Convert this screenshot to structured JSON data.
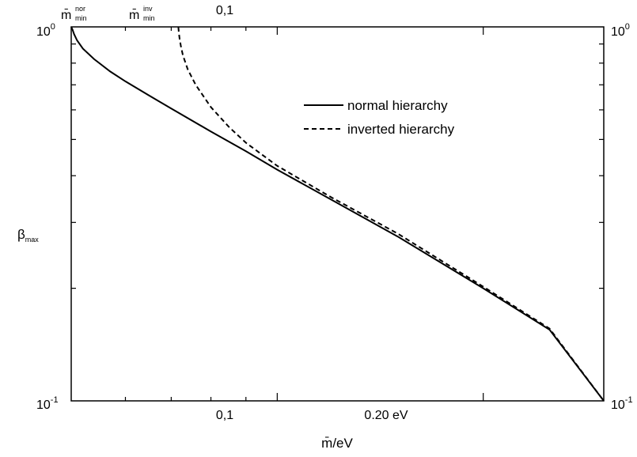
{
  "chart_data": {
    "type": "line",
    "xlabel": "m̄/eV",
    "ylabel": "β",
    "ylabel_sub": "max",
    "x_scale": "log",
    "y_scale": "log",
    "xlim": [
      0.05,
      0.3
    ],
    "ylim": [
      0.1,
      1.0
    ],
    "grid": false,
    "legend_position": "top-right",
    "x_tick_labels_bottom": [
      {
        "x": 0.1,
        "label": "0,1"
      },
      {
        "x": 0.2,
        "label": "0.20 eV"
      }
    ],
    "top_labels": {
      "nor": {
        "x": 0.05,
        "base": "m̄",
        "sup": "nor",
        "sub": "min"
      },
      "inv": {
        "x": 0.0717,
        "base": "m̄",
        "sup": "inv",
        "sub": "min"
      },
      "tick": {
        "x": 0.1,
        "label": "0,1"
      }
    },
    "y_tick_labels": [
      {
        "y": 1.0,
        "base": "10",
        "exp": "0"
      },
      {
        "y": 0.1,
        "base": "10",
        "exp": "-1"
      }
    ],
    "series": [
      {
        "name": "normal hierarchy",
        "style": "solid",
        "x": [
          0.05,
          0.0502,
          0.0505,
          0.051,
          0.052,
          0.054,
          0.057,
          0.06,
          0.065,
          0.07,
          0.08,
          0.09,
          0.1,
          0.12,
          0.15,
          0.2,
          0.25,
          0.3
        ],
        "y": [
          1.0,
          0.985,
          0.955,
          0.92,
          0.875,
          0.82,
          0.76,
          0.715,
          0.655,
          0.605,
          0.525,
          0.465,
          0.415,
          0.345,
          0.275,
          0.2,
          0.155,
          0.1
        ]
      },
      {
        "name": "inverted hierarchy",
        "style": "dashed",
        "x": [
          0.0717,
          0.0718,
          0.072,
          0.0723,
          0.0728,
          0.074,
          0.076,
          0.08,
          0.085,
          0.09,
          0.1,
          0.12,
          0.15,
          0.2,
          0.25,
          0.3
        ],
        "y": [
          1.0,
          0.97,
          0.93,
          0.89,
          0.84,
          0.77,
          0.7,
          0.61,
          0.54,
          0.49,
          0.425,
          0.35,
          0.28,
          0.202,
          0.156,
          0.1
        ]
      }
    ]
  }
}
